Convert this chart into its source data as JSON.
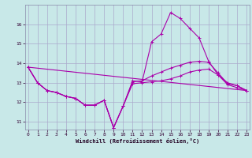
{
  "xlabel": "Windchill (Refroidissement éolien,°C)",
  "bg_color": "#c8e8e8",
  "grid_color": "#aaaacc",
  "line_color": "#aa00aa",
  "x_ticks": [
    0,
    1,
    2,
    3,
    4,
    5,
    6,
    7,
    8,
    9,
    10,
    11,
    12,
    13,
    14,
    15,
    16,
    17,
    18,
    19,
    20,
    21,
    22,
    23
  ],
  "y_ticks": [
    11,
    12,
    13,
    14,
    15,
    16
  ],
  "xlim": [
    -0.3,
    23.3
  ],
  "ylim": [
    10.6,
    17.0
  ],
  "series": [
    {
      "x": [
        0,
        1,
        2,
        3,
        4,
        5,
        6,
        7,
        8,
        9,
        10,
        11,
        12,
        13,
        14,
        15,
        16,
        17,
        18,
        19,
        20,
        21,
        22,
        23
      ],
      "y": [
        13.8,
        13.0,
        12.6,
        12.5,
        12.3,
        12.2,
        11.85,
        11.85,
        12.1,
        10.7,
        11.8,
        13.1,
        13.05,
        15.1,
        15.5,
        16.6,
        16.3,
        15.8,
        15.3,
        14.1,
        13.4,
        13.0,
        12.85,
        12.6
      ]
    },
    {
      "x": [
        0,
        1,
        2,
        3,
        4,
        5,
        6,
        7,
        8,
        9,
        10,
        11,
        12,
        13,
        14,
        15,
        16,
        17,
        18,
        19,
        20,
        21,
        22,
        23
      ],
      "y": [
        13.8,
        13.0,
        12.6,
        12.5,
        12.3,
        12.2,
        11.85,
        11.85,
        12.1,
        10.7,
        11.8,
        13.05,
        13.1,
        13.35,
        13.55,
        13.75,
        13.9,
        14.05,
        14.1,
        14.05,
        13.5,
        12.95,
        12.85,
        12.6
      ]
    },
    {
      "x": [
        0,
        1,
        2,
        3,
        4,
        5,
        6,
        7,
        8,
        9,
        10,
        11,
        12,
        13,
        14,
        15,
        16,
        17,
        18,
        19,
        20,
        21,
        22,
        23
      ],
      "y": [
        13.8,
        13.0,
        12.6,
        12.5,
        12.3,
        12.2,
        11.85,
        11.85,
        12.1,
        10.7,
        11.8,
        12.95,
        13.0,
        13.05,
        13.1,
        13.2,
        13.35,
        13.55,
        13.65,
        13.7,
        13.4,
        12.9,
        12.75,
        12.6
      ]
    },
    {
      "x": [
        0,
        23
      ],
      "y": [
        13.8,
        12.6
      ]
    }
  ],
  "marker": "+",
  "markersize": 3,
  "linewidth": 0.8
}
